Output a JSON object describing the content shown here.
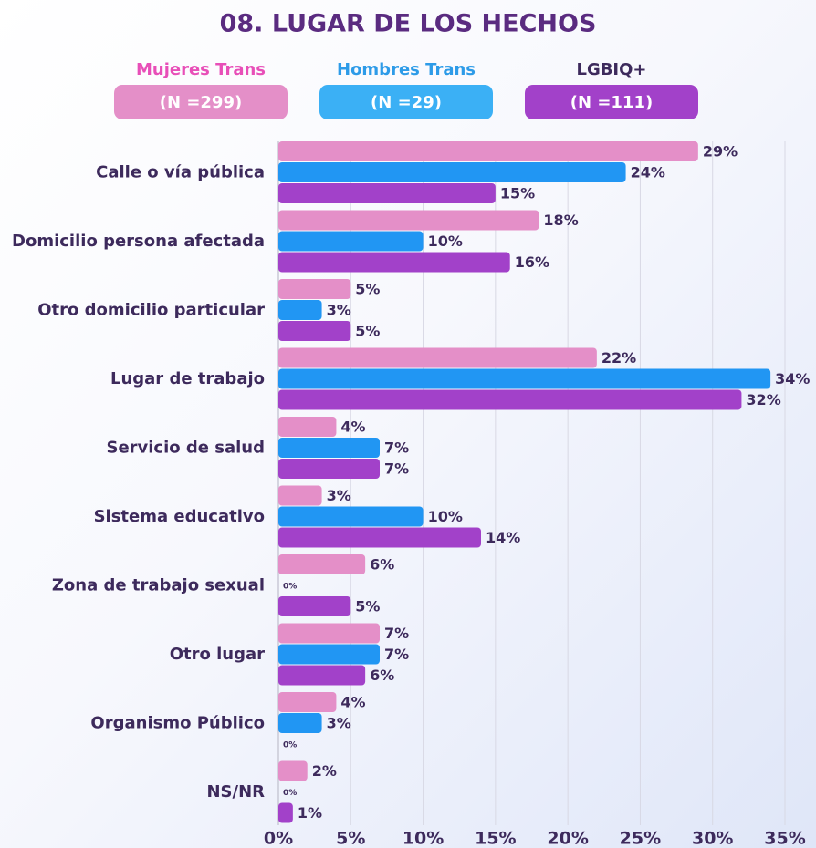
{
  "chart_data": {
    "type": "bar",
    "orientation": "horizontal",
    "title": "08.  LUGAR DE LOS HECHOS",
    "categories": [
      "Calle o vía pública",
      "Domicilio persona afectada",
      "Otro domicilio particular",
      "Lugar de trabajo",
      "Servicio de salud",
      "Sistema educativo",
      "Zona de trabajo sexual",
      "Otro lugar",
      "Organismo Público",
      "NS/NR"
    ],
    "series": [
      {
        "name": "Mujeres Trans",
        "n_label": "(N =299)",
        "color": "#e48fc8",
        "values": [
          29,
          18,
          5,
          22,
          4,
          3,
          6,
          7,
          4,
          2
        ],
        "value_labels": [
          "29%",
          "18%",
          "5%",
          "22%",
          "4%",
          "3%",
          "6%",
          "7%",
          "4%",
          "2%"
        ]
      },
      {
        "name": "Hombres Trans",
        "n_label": "(N =29)",
        "color": "#2196f3",
        "values": [
          24,
          10,
          3,
          34,
          7,
          10,
          0,
          7,
          3,
          0
        ],
        "value_labels": [
          "24%",
          "10%",
          "3%",
          "34%",
          "7%",
          "10%",
          "0%",
          "7%",
          "3%",
          "0%"
        ]
      },
      {
        "name": "LGBIQ+",
        "n_label": "(N =111)",
        "color": "#a241c9",
        "values": [
          15,
          16,
          5,
          32,
          7,
          14,
          5,
          6,
          0,
          1
        ],
        "value_labels": [
          "15%",
          "16%",
          "5%",
          "32%",
          "7%",
          "14%",
          "5%",
          "6%",
          "0%",
          "1%"
        ]
      }
    ],
    "xlim": [
      0,
      35
    ],
    "xticks": [
      {
        "value": 0,
        "label": "0%"
      },
      {
        "value": 5,
        "label": "5%"
      },
      {
        "value": 10,
        "label": "10%"
      },
      {
        "value": 15,
        "label": "15%"
      },
      {
        "value": 20,
        "label": "20%"
      },
      {
        "value": 25,
        "label": "25%"
      },
      {
        "value": 30,
        "label": "30%"
      },
      {
        "value": 35,
        "label": "35%"
      }
    ],
    "grid": true
  }
}
